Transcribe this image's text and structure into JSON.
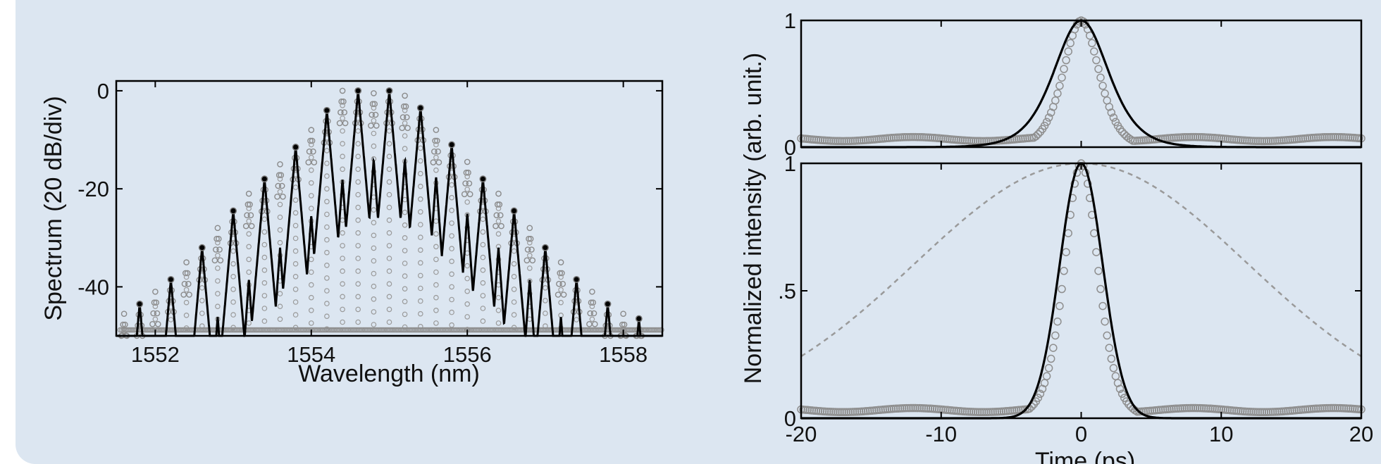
{
  "chart_data": [
    {
      "type": "line",
      "name": "spectrum",
      "xlabel": "Wavelength (nm)",
      "ylabel": "Spectrum  (20 dB/div)",
      "xlim": [
        1551.5,
        1558.5
      ],
      "ylim": [
        -50,
        2
      ],
      "xticks": [
        1552,
        1554,
        1556,
        1558
      ],
      "yticks": [
        0,
        -20,
        -40
      ],
      "comb_spacing_nm": 0.4,
      "series": [
        {
          "style": "black-line",
          "x": [
            1551.8,
            1552.2,
            1552.6,
            1553.0,
            1553.4,
            1553.8,
            1554.2,
            1554.6,
            1555.0,
            1555.4,
            1555.8,
            1556.2,
            1556.6,
            1557.0,
            1557.4,
            1557.8,
            1558.2
          ],
          "values": [
            -43.5,
            -38.5,
            -32,
            -24.5,
            -18,
            -11.5,
            -4,
            0,
            0,
            -3.5,
            -11,
            -18,
            -24.5,
            -32,
            -38.5,
            -43.5,
            -46.5
          ]
        },
        {
          "style": "grey-circles",
          "x": [
            1551.6,
            1551.8,
            1552.0,
            1552.2,
            1552.4,
            1552.6,
            1552.8,
            1553.0,
            1553.2,
            1553.4,
            1553.6,
            1553.8,
            1554.0,
            1554.2,
            1554.4,
            1554.6,
            1554.8,
            1555.0,
            1555.2,
            1555.4,
            1555.6,
            1555.8,
            1556.0,
            1556.2,
            1556.4,
            1556.6,
            1556.8,
            1557.0,
            1557.2,
            1557.4,
            1557.6,
            1557.8,
            1558.0,
            1558.2
          ],
          "values": [
            -45.5,
            -43.5,
            -41,
            -38.5,
            -35,
            -32,
            -28,
            -24.5,
            -21,
            -18,
            -15,
            -11.5,
            -8,
            -4,
            0,
            0,
            -0.5,
            0,
            -1,
            -3.5,
            -8,
            -11,
            -14.5,
            -18,
            -21,
            -24.5,
            -28,
            -32,
            -35,
            -38.5,
            -41,
            -43.5,
            -45.5,
            -46.5
          ]
        }
      ]
    },
    {
      "type": "line",
      "name": "pulse-top",
      "xlim": [
        -20,
        20
      ],
      "ylim": [
        0,
        1
      ],
      "yticks": [
        0,
        1
      ],
      "ytick_labels": [
        "0",
        "1"
      ],
      "period_ps": 40,
      "series": [
        {
          "style": "black-line",
          "shape": "sech2",
          "center": 0,
          "fwhm_ps": 4.6,
          "peak": 1
        },
        {
          "style": "grey-circles",
          "shape": "sech2",
          "center": 0,
          "fwhm_ps": 3.0,
          "peak": 1,
          "pedestal": 0.08
        }
      ]
    },
    {
      "type": "line",
      "name": "pulse-bottom",
      "xlabel": "Time (ps)",
      "ylabel": "Normalized intensity (arb. unit.)",
      "xlim": [
        -20,
        20
      ],
      "ylim": [
        0,
        1
      ],
      "xticks": [
        -20,
        -10,
        0,
        10,
        20
      ],
      "yticks": [
        0,
        0.5,
        1
      ],
      "ytick_labels": [
        "0",
        ".5",
        "1"
      ],
      "series": [
        {
          "style": "black-line",
          "shape": "gauss",
          "center": 0,
          "fwhm_ps": 3.6,
          "peak": 1
        },
        {
          "style": "grey-circles",
          "shape": "sech2",
          "center": 0,
          "fwhm_ps": 2.8,
          "peak": 1,
          "pedestal": 0.04
        },
        {
          "style": "grey-dashed",
          "shape": "gauss",
          "center": 0,
          "fwhm_ps": 28,
          "peak": 1
        }
      ]
    }
  ]
}
